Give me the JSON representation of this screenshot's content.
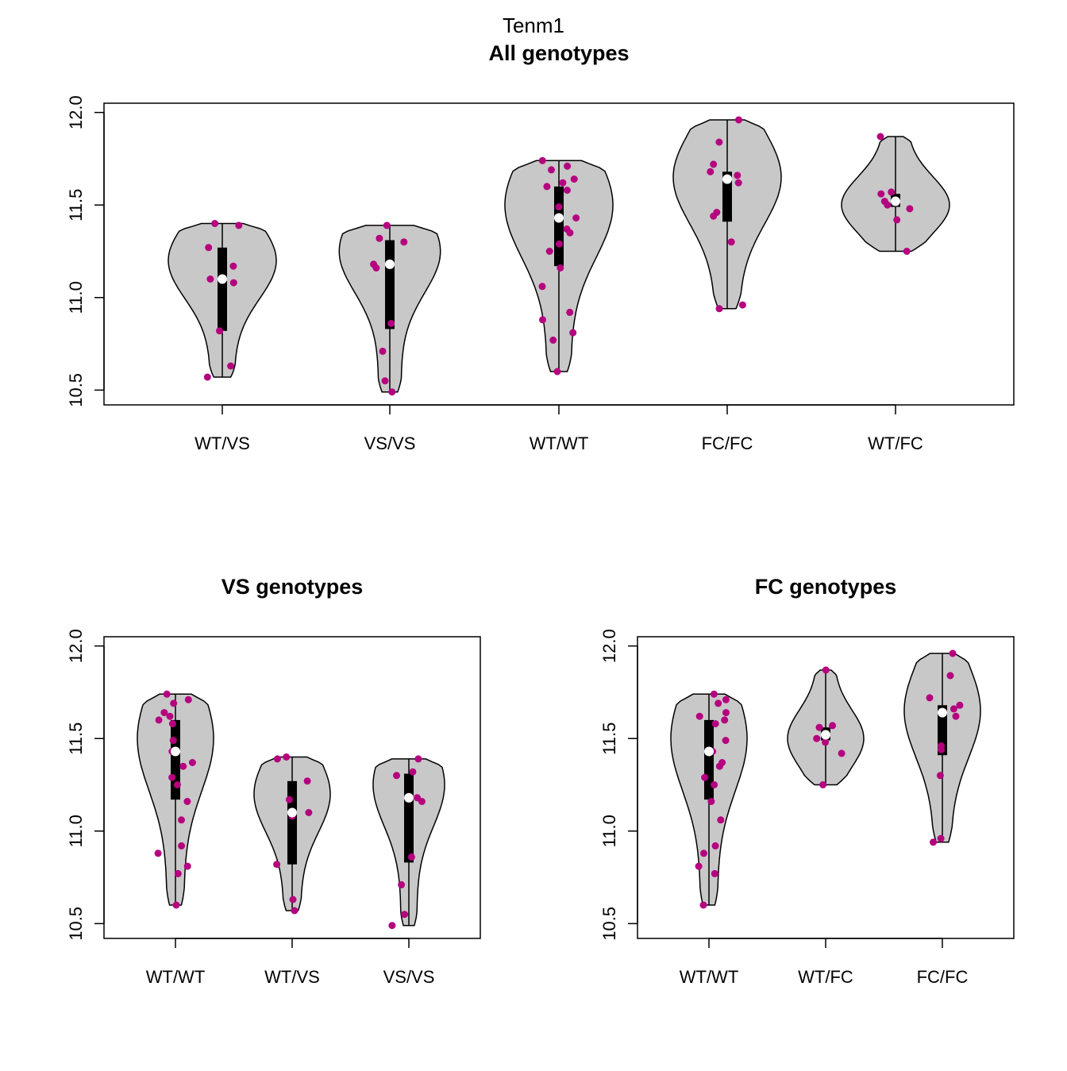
{
  "title": "Tenm1",
  "colors": {
    "violin_fill": "#c8c8c8",
    "point": "#b5007f",
    "median_point": "#ffffff",
    "box": "#000000"
  },
  "chart_data": [
    {
      "type": "violin",
      "title": "All genotypes",
      "ylim": [
        10.42,
        12.05
      ],
      "yticks": [
        "10.5",
        "11.0",
        "11.5",
        "12.0"
      ],
      "categories": [
        "WT/VS",
        "VS/VS",
        "WT/WT",
        "FC/FC",
        "WT/FC"
      ],
      "groups": [
        {
          "label": "WT/VS",
          "min": 10.57,
          "max": 11.4,
          "q1": 10.82,
          "median": 11.1,
          "q3": 11.27,
          "bulge": 11.2,
          "width": 0.8,
          "points": [
            10.63,
            10.57,
            10.82,
            11.08,
            11.1,
            11.17,
            11.27,
            11.39,
            11.4
          ]
        },
        {
          "label": "VS/VS",
          "min": 10.49,
          "max": 11.39,
          "q1": 10.83,
          "median": 11.18,
          "q3": 11.31,
          "bulge": 11.25,
          "width": 0.75,
          "points": [
            10.49,
            10.55,
            10.71,
            10.86,
            11.16,
            11.18,
            11.3,
            11.32,
            11.39
          ]
        },
        {
          "label": "WT/WT",
          "min": 10.6,
          "max": 11.74,
          "q1": 11.17,
          "median": 11.43,
          "q3": 11.6,
          "bulge": 11.5,
          "width": 0.8,
          "points": [
            10.6,
            10.77,
            10.81,
            10.88,
            10.92,
            11.06,
            11.16,
            11.25,
            11.29,
            11.35,
            11.37,
            11.43,
            11.49,
            11.58,
            11.6,
            11.62,
            11.64,
            11.69,
            11.71,
            11.74
          ]
        },
        {
          "label": "FC/FC",
          "min": 10.94,
          "max": 11.96,
          "q1": 11.41,
          "median": 11.64,
          "q3": 11.68,
          "bulge": 11.65,
          "width": 0.8,
          "points": [
            10.94,
            10.96,
            11.3,
            11.44,
            11.46,
            11.62,
            11.66,
            11.68,
            11.72,
            11.84,
            11.96
          ]
        },
        {
          "label": "WT/FC",
          "min": 11.25,
          "max": 11.87,
          "q1": 11.49,
          "median": 11.52,
          "q3": 11.56,
          "bulge": 11.5,
          "width": 0.8,
          "points": [
            11.25,
            11.42,
            11.48,
            11.5,
            11.52,
            11.56,
            11.57,
            11.87
          ]
        }
      ]
    },
    {
      "type": "violin",
      "title": "VS genotypes",
      "ylim": [
        10.42,
        12.05
      ],
      "yticks": [
        "10.5",
        "11.0",
        "11.5",
        "12.0"
      ],
      "categories": [
        "WT/WT",
        "WT/VS",
        "VS/VS"
      ],
      "groups": [
        {
          "label": "WT/WT",
          "min": 10.6,
          "max": 11.74,
          "q1": 11.17,
          "median": 11.43,
          "q3": 11.6,
          "bulge": 11.5,
          "width": 0.8,
          "points": [
            10.6,
            10.77,
            10.81,
            10.88,
            10.92,
            11.06,
            11.16,
            11.25,
            11.29,
            11.35,
            11.37,
            11.43,
            11.49,
            11.58,
            11.6,
            11.62,
            11.64,
            11.69,
            11.71,
            11.74
          ]
        },
        {
          "label": "WT/VS",
          "min": 10.57,
          "max": 11.4,
          "q1": 10.82,
          "median": 11.1,
          "q3": 11.27,
          "bulge": 11.2,
          "width": 0.8,
          "points": [
            10.63,
            10.57,
            10.82,
            11.08,
            11.1,
            11.17,
            11.27,
            11.39,
            11.4
          ]
        },
        {
          "label": "VS/VS",
          "min": 10.49,
          "max": 11.39,
          "q1": 10.83,
          "median": 11.18,
          "q3": 11.31,
          "bulge": 11.25,
          "width": 0.75,
          "points": [
            10.49,
            10.55,
            10.71,
            10.86,
            11.16,
            11.18,
            11.3,
            11.32,
            11.39
          ]
        }
      ]
    },
    {
      "type": "violin",
      "title": "FC genotypes",
      "ylim": [
        10.42,
        12.05
      ],
      "yticks": [
        "10.5",
        "11.0",
        "11.5",
        "12.0"
      ],
      "categories": [
        "WT/WT",
        "WT/FC",
        "FC/FC"
      ],
      "groups": [
        {
          "label": "WT/WT",
          "min": 10.6,
          "max": 11.74,
          "q1": 11.17,
          "median": 11.43,
          "q3": 11.6,
          "bulge": 11.5,
          "width": 0.8,
          "points": [
            10.6,
            10.77,
            10.81,
            10.88,
            10.92,
            11.06,
            11.16,
            11.25,
            11.29,
            11.35,
            11.37,
            11.43,
            11.49,
            11.58,
            11.6,
            11.62,
            11.64,
            11.69,
            11.71,
            11.74
          ]
        },
        {
          "label": "WT/FC",
          "min": 11.25,
          "max": 11.87,
          "q1": 11.49,
          "median": 11.52,
          "q3": 11.56,
          "bulge": 11.5,
          "width": 0.8,
          "points": [
            11.25,
            11.42,
            11.48,
            11.5,
            11.52,
            11.56,
            11.57,
            11.87
          ]
        },
        {
          "label": "FC/FC",
          "min": 10.94,
          "max": 11.96,
          "q1": 11.41,
          "median": 11.64,
          "q3": 11.68,
          "bulge": 11.65,
          "width": 0.8,
          "points": [
            10.94,
            10.96,
            11.3,
            11.44,
            11.46,
            11.62,
            11.66,
            11.68,
            11.72,
            11.84,
            11.96
          ]
        }
      ]
    }
  ]
}
